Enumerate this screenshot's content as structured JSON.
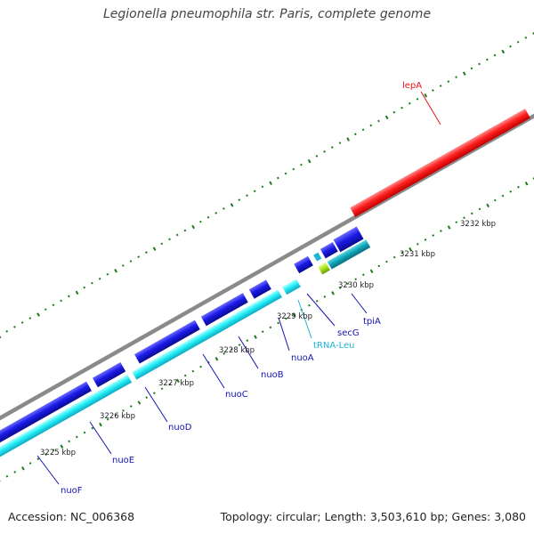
{
  "header": {
    "title": "Legionella pneumophila str. Paris, complete genome"
  },
  "footer": {
    "accession": "Accession: NC_006368",
    "topology": "Topology: circular; Length: 3,503,610 bp; Genes: 3,080"
  },
  "colors": {
    "backbone": "#808080",
    "forward_gene": "#e8141a",
    "reverse_gene": "#1414e0",
    "reverse_gene_alt": "#0f9fb0",
    "cds": "#1ee6f0",
    "trna": "#a6e81e",
    "tick": "#1a7a1a",
    "label_forward": "#e8141a",
    "label_reverse": "#1414b4",
    "label_trna": "#1eb4d4"
  },
  "ticks": [
    {
      "label": "3225 kbp"
    },
    {
      "label": "3226 kbp"
    },
    {
      "label": "3227 kbp"
    },
    {
      "label": "3228 kbp"
    },
    {
      "label": "3229 kbp"
    },
    {
      "label": "3230 kbp"
    },
    {
      "label": "3231 kbp"
    },
    {
      "label": "3232 kbp"
    }
  ],
  "genes": [
    {
      "name": "lepA",
      "strand": "forward",
      "type": "gene"
    },
    {
      "name": "tpiA",
      "strand": "reverse",
      "type": "gene"
    },
    {
      "name": "secG",
      "strand": "reverse",
      "type": "gene"
    },
    {
      "name": "tRNA-Leu",
      "strand": "reverse",
      "type": "tRNA"
    },
    {
      "name": "nuoA",
      "strand": "reverse",
      "type": "gene"
    },
    {
      "name": "nuoB",
      "strand": "reverse",
      "type": "gene"
    },
    {
      "name": "nuoC",
      "strand": "reverse",
      "type": "gene"
    },
    {
      "name": "nuoD",
      "strand": "reverse",
      "type": "gene"
    },
    {
      "name": "nuoE",
      "strand": "reverse",
      "type": "gene"
    },
    {
      "name": "nuoF",
      "strand": "reverse",
      "type": "gene"
    }
  ]
}
